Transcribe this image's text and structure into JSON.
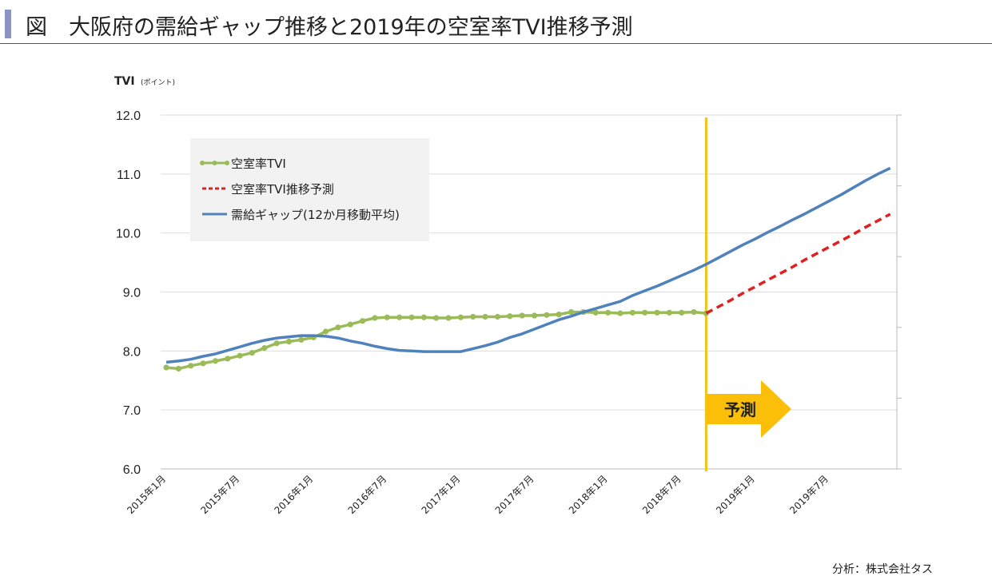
{
  "title": "図　大阪府の需給ギャップ推移と2019年の空室率TVI推移予測",
  "footer": "分析：株式会社タス",
  "colors": {
    "tvi": "#9bbb59",
    "forecast": "#e02020",
    "gap": "#4f81bd",
    "divider": "#f2c417",
    "arrow": "#fbbf0a",
    "title_accent": "#8a95c4"
  },
  "chart_data": {
    "type": "line",
    "ylabel": "TVI",
    "ylabel_unit": "(ポイント)",
    "ylim": [
      6.0,
      12.0
    ],
    "yticks": [
      "6.0",
      "7.0",
      "8.0",
      "9.0",
      "10.0",
      "11.0",
      "12.0"
    ],
    "secondary_axis": {
      "labels": false,
      "tick_count": 6
    },
    "grid": true,
    "legend": "top-left",
    "x_start": "2015-01",
    "x_end": "2019-12",
    "xtick_labels": [
      "2015年1月",
      "2015年7月",
      "2016年1月",
      "2016年7月",
      "2017年1月",
      "2017年7月",
      "2018年1月",
      "2018年7月",
      "2019年1月",
      "2019年7月"
    ],
    "forecast_start": "2018-09",
    "forecast_label": "予測",
    "series": [
      {
        "name": "空室率TVI",
        "start": "2015-01",
        "style": "line-markers",
        "values": [
          7.72,
          7.7,
          7.75,
          7.79,
          7.83,
          7.87,
          7.92,
          7.97,
          8.05,
          8.13,
          8.16,
          8.19,
          8.23,
          8.33,
          8.4,
          8.45,
          8.51,
          8.56,
          8.57,
          8.57,
          8.57,
          8.57,
          8.56,
          8.56,
          8.57,
          8.58,
          8.58,
          8.58,
          8.59,
          8.6,
          8.6,
          8.61,
          8.62,
          8.66,
          8.66,
          8.65,
          8.65,
          8.64,
          8.65,
          8.65,
          8.65,
          8.65,
          8.65,
          8.66,
          8.64
        ]
      },
      {
        "name": "空室率TVI推移予測",
        "start": "2018-09",
        "style": "dashed",
        "values": [
          8.64,
          8.75,
          8.86,
          8.98,
          9.09,
          9.2,
          9.31,
          9.42,
          9.54,
          9.65,
          9.76,
          9.87,
          9.98,
          10.1,
          10.21,
          10.32
        ]
      },
      {
        "name": "需給ギャップ(12か月移動平均)",
        "start": "2015-01",
        "style": "line",
        "values": [
          7.81,
          7.83,
          7.86,
          7.91,
          7.95,
          8.01,
          8.07,
          8.13,
          8.18,
          8.22,
          8.24,
          8.26,
          8.26,
          8.25,
          8.22,
          8.17,
          8.13,
          8.08,
          8.04,
          8.01,
          8.0,
          7.99,
          7.99,
          7.99,
          7.99,
          8.04,
          8.09,
          8.15,
          8.23,
          8.29,
          8.37,
          8.45,
          8.53,
          8.59,
          8.66,
          8.72,
          8.78,
          8.84,
          8.94,
          9.02,
          9.1,
          9.19,
          9.28,
          9.37,
          9.47,
          9.58,
          9.69,
          9.8,
          9.9,
          10.01,
          10.11,
          10.22,
          10.32,
          10.43,
          10.54,
          10.65,
          10.77,
          10.89,
          11.0,
          11.1
        ]
      }
    ]
  }
}
